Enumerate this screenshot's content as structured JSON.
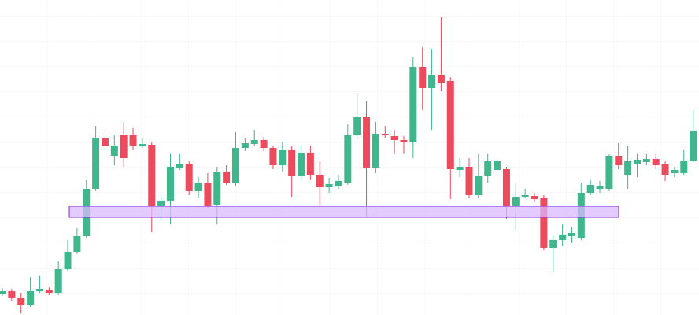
{
  "chart_data": {
    "type": "candlestick",
    "ylim": [
      0,
      400
    ],
    "grid": true,
    "up_color": "#3fb68b",
    "down_color": "#ec4a5d",
    "zone": {
      "low": 124,
      "high": 138,
      "color": "#d9b8ff",
      "border_color": "#8a2be2"
    },
    "open": [
      27,
      30,
      22,
      13,
      30,
      32,
      28,
      58,
      80,
      100,
      160,
      225,
      202,
      228,
      228,
      214,
      216,
      138,
      145,
      187,
      192,
      158,
      168,
      140,
      182,
      168,
      212,
      217,
      222,
      212,
      190,
      210,
      176,
      206,
      178,
      162,
      164,
      168,
      228,
      252,
      187,
      230,
      227,
      222,
      220,
      315,
      288,
      305,
      297,
      184,
      188,
      152,
      177,
      184,
      186,
      138,
      150,
      151,
      148,
      85,
      95,
      100,
      98,
      155,
      160,
      160,
      202,
      178,
      192,
      194,
      198,
      192,
      180,
      180,
      196
    ],
    "high": [
      34,
      33,
      28,
      48,
      50,
      35,
      68,
      95,
      110,
      172,
      240,
      235,
      228,
      245,
      238,
      225,
      220,
      150,
      205,
      205,
      195,
      175,
      180,
      188,
      190,
      232,
      225,
      235,
      226,
      215,
      220,
      215,
      215,
      215,
      195,
      174,
      178,
      242,
      282,
      272,
      245,
      240,
      235,
      227,
      328,
      340,
      338,
      378,
      302,
      200,
      200,
      205,
      205,
      198,
      188,
      168,
      160,
      155,
      152,
      100,
      115,
      112,
      168,
      172,
      170,
      204,
      218,
      215,
      205,
      205,
      205,
      195,
      188,
      210,
      260
    ],
    "low": [
      24,
      18,
      2,
      10,
      28,
      26,
      26,
      56,
      78,
      98,
      158,
      210,
      190,
      188,
      210,
      212,
      105,
      120,
      115,
      184,
      152,
      148,
      136,
      115,
      165,
      164,
      208,
      214,
      208,
      185,
      182,
      150,
      172,
      172,
      138,
      155,
      160,
      165,
      224,
      125,
      180,
      225,
      204,
      205,
      200,
      260,
      235,
      284,
      147,
      175,
      148,
      148,
      168,
      180,
      122,
      108,
      148,
      144,
      82,
      55,
      88,
      92,
      95,
      152,
      155,
      158,
      185,
      160,
      175,
      190,
      185,
      170,
      175,
      178,
      194
    ],
    "close": [
      31,
      22,
      13,
      31,
      33,
      28,
      58,
      80,
      100,
      160,
      225,
      214,
      215,
      200,
      214,
      217,
      138,
      145,
      188,
      192,
      158,
      168,
      138,
      182,
      168,
      212,
      218,
      222,
      212,
      190,
      210,
      176,
      206,
      178,
      162,
      166,
      170,
      228,
      252,
      187,
      230,
      228,
      222,
      220,
      315,
      288,
      305,
      295,
      185,
      188,
      152,
      177,
      195,
      196,
      138,
      150,
      152,
      147,
      85,
      95,
      102,
      104,
      155,
      165,
      164,
      202,
      190,
      195,
      197,
      198,
      190,
      178,
      184,
      196,
      234
    ]
  }
}
